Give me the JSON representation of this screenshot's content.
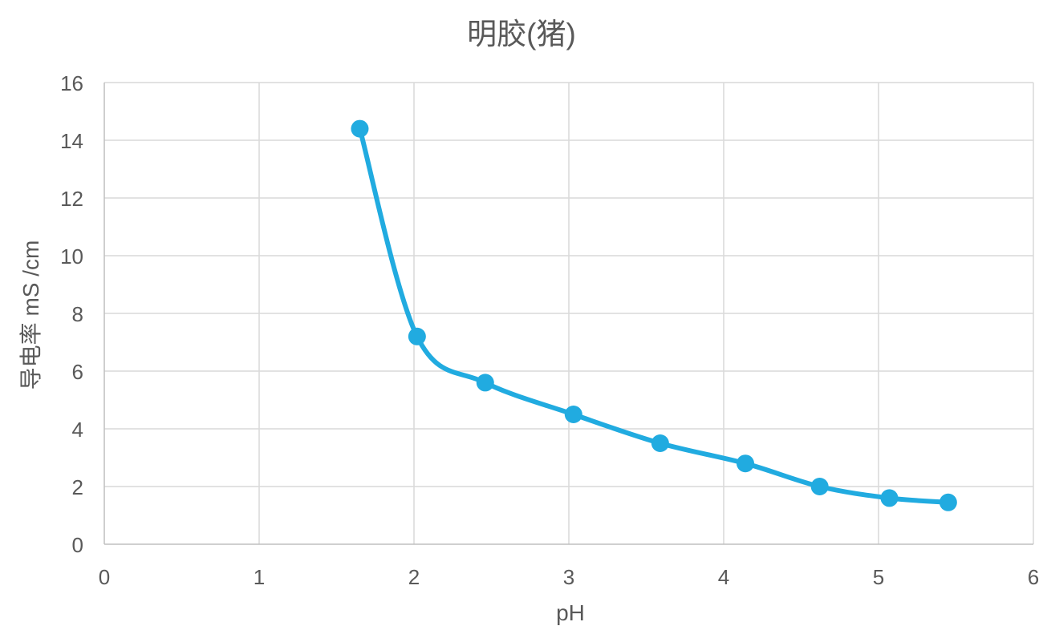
{
  "chart_data": {
    "type": "scatter",
    "title": "明胶(猪)",
    "xlabel": "pH",
    "ylabel": "导电率 mS /cm",
    "xlim": [
      0,
      6
    ],
    "ylim": [
      0,
      16
    ],
    "xticks": [
      0,
      1,
      2,
      3,
      4,
      5,
      6
    ],
    "yticks": [
      0,
      2,
      4,
      6,
      8,
      10,
      12,
      14,
      16
    ],
    "grid": true,
    "legend": "none",
    "line_style": "smooth",
    "series": [
      {
        "color": "#21ABE0",
        "points": [
          {
            "x": 1.65,
            "y": 14.4
          },
          {
            "x": 2.02,
            "y": 7.2
          },
          {
            "x": 2.46,
            "y": 5.6
          },
          {
            "x": 3.03,
            "y": 4.5
          },
          {
            "x": 3.59,
            "y": 3.5
          },
          {
            "x": 4.14,
            "y": 2.8
          },
          {
            "x": 4.62,
            "y": 2.0
          },
          {
            "x": 5.07,
            "y": 1.6
          },
          {
            "x": 5.45,
            "y": 1.45
          }
        ]
      }
    ]
  }
}
